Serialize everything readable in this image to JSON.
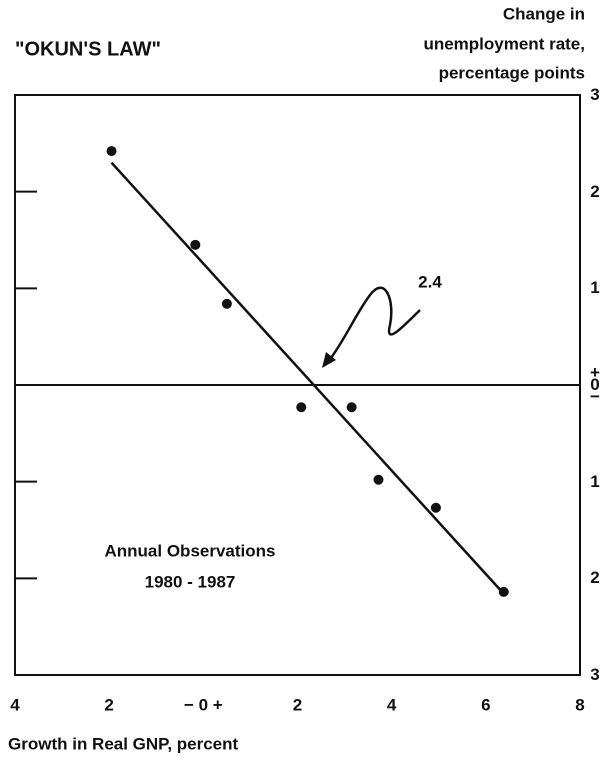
{
  "chart_data": {
    "type": "scatter",
    "title": "\"OKUN'S LAW\"",
    "y_label": [
      "Change in",
      "unemployment rate,",
      "percentage points"
    ],
    "x_label": "Growth in Real GNP, percent",
    "annotations": [
      "2.4",
      "Annual Observations",
      "1980 - 1987"
    ],
    "x": [
      -1.95,
      -0.17,
      0.5,
      2.08,
      3.15,
      3.72,
      4.94,
      6.38
    ],
    "values": [
      2.42,
      1.45,
      0.84,
      -0.23,
      -0.23,
      -0.98,
      -1.27,
      -2.14
    ],
    "color": "#111111",
    "trend_line": {
      "x": [
        -1.95,
        6.4
      ],
      "values": [
        2.3,
        -2.17
      ]
    },
    "xlim": [
      -4,
      8
    ],
    "ylim": [
      -3,
      3
    ],
    "xticks": [
      {
        "value": -4,
        "label": "4"
      },
      {
        "value": -2,
        "label": "2"
      },
      {
        "value": 0,
        "label": "− 0 +"
      },
      2,
      4,
      6,
      8
    ],
    "yticks": [
      {
        "value": -3,
        "label": "3"
      },
      {
        "value": -2,
        "label": "2"
      },
      {
        "value": -1,
        "label": "1"
      },
      {
        "value": 0,
        "label": "+ 0 −"
      },
      1,
      2,
      3
    ],
    "zero_line": true
  }
}
